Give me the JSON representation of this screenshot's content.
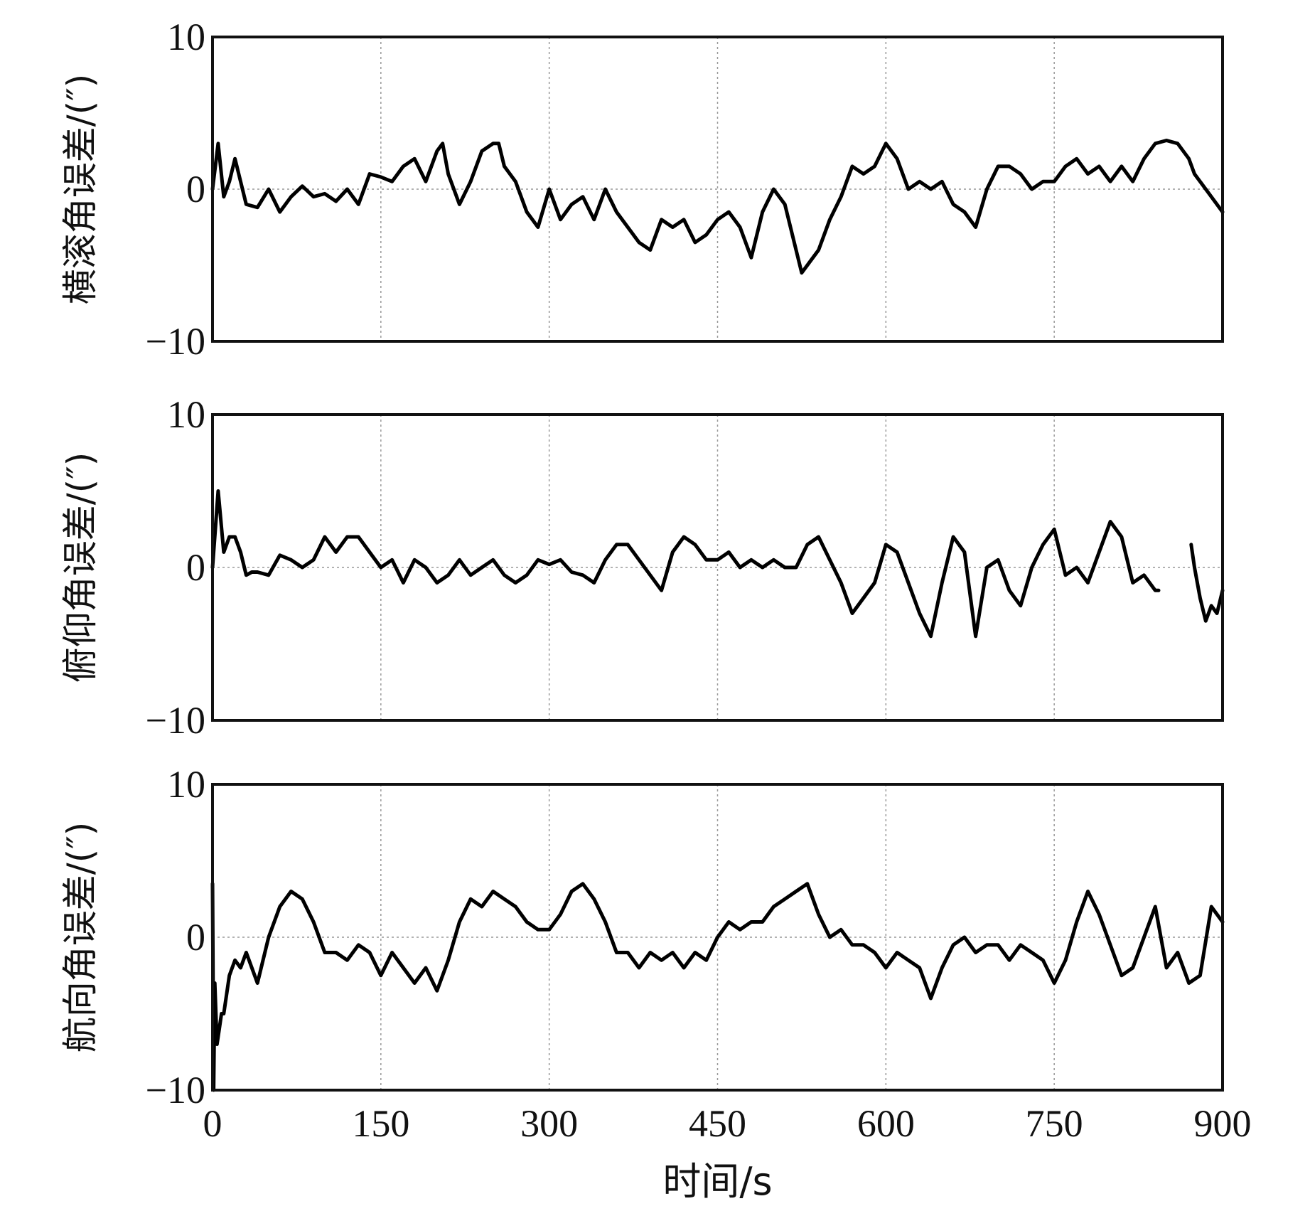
{
  "chart_data": {
    "type": "line",
    "xlabel": "时间/s",
    "xlim": [
      0,
      900
    ],
    "xticks": [
      0,
      150,
      300,
      450,
      600,
      750,
      900
    ],
    "panels": [
      {
        "ylabel": "横滚角误差/(″)",
        "ylim": [
          -10,
          10
        ],
        "yticks": [
          -10,
          0,
          10
        ],
        "grid": true,
        "series": [
          {
            "x": [
              0,
              5,
              10,
              15,
              20,
              25,
              30,
              40,
              50,
              60,
              70,
              80,
              90,
              100,
              110,
              120,
              130,
              140,
              150,
              160,
              170,
              180,
              190,
              200,
              205,
              210,
              220,
              230,
              240,
              250,
              255,
              260,
              270,
              280,
              290,
              300,
              310,
              320,
              330,
              340,
              350,
              360,
              370,
              380,
              390,
              400,
              410,
              420,
              430,
              440,
              450,
              460,
              470,
              480,
              490,
              500,
              510,
              520,
              525,
              530,
              540,
              550,
              560,
              570,
              580,
              590,
              600,
              610,
              620,
              630,
              640,
              650,
              660,
              670,
              680,
              690,
              700,
              710,
              720,
              730,
              740,
              750,
              760,
              770,
              780,
              790,
              800,
              810,
              820,
              830,
              840,
              850,
              860,
              870,
              875,
              880,
              890,
              900
            ],
            "y": [
              0,
              3,
              -0.5,
              0.5,
              2,
              0.5,
              -1,
              -1.2,
              0,
              -1.5,
              -0.5,
              0.2,
              -0.5,
              -0.3,
              -0.8,
              0,
              -1,
              1,
              0.8,
              0.5,
              1.5,
              2,
              0.5,
              2.5,
              3,
              1,
              -1,
              0.5,
              2.5,
              3,
              3,
              1.5,
              0.5,
              -1.5,
              -2.5,
              0,
              -2,
              -1,
              -0.5,
              -2,
              0,
              -1.5,
              -2.5,
              -3.5,
              -4,
              -2,
              -2.5,
              -2,
              -3.5,
              -3,
              -2,
              -1.5,
              -2.5,
              -4.5,
              -1.5,
              0,
              -1,
              -4,
              -5.5,
              -5,
              -4,
              -2,
              -0.5,
              1.5,
              1,
              1.5,
              3,
              2,
              0,
              0.5,
              0,
              0.5,
              -1,
              -1.5,
              -2.5,
              0,
              1.5,
              1.5,
              1,
              0,
              0.5,
              0.5,
              1.5,
              2,
              1,
              1.5,
              0.5,
              1.5,
              0.5,
              2,
              3,
              3.2,
              3,
              2,
              1,
              0.5,
              -0.5,
              -1.5
            ]
          }
        ]
      },
      {
        "ylabel": "俯仰角误差/(″)",
        "ylim": [
          -10,
          10
        ],
        "yticks": [
          -10,
          0,
          10
        ],
        "grid": true,
        "series": [
          {
            "x": [
              0,
              5,
              10,
              15,
              20,
              25,
              30,
              35,
              40,
              50,
              60,
              70,
              80,
              90,
              100,
              110,
              120,
              130,
              140,
              150,
              160,
              170,
              180,
              190,
              200,
              210,
              220,
              230,
              240,
              250,
              260,
              270,
              280,
              290,
              300,
              310,
              320,
              330,
              340,
              350,
              360,
              370,
              380,
              390,
              400,
              410,
              420,
              430,
              440,
              450,
              460,
              470,
              480,
              490,
              500,
              510,
              520,
              530,
              540,
              550,
              560,
              570,
              580,
              590,
              600,
              610,
              620,
              630,
              640,
              650,
              660,
              670,
              680,
              690,
              700,
              710,
              720,
              730,
              740,
              750,
              760,
              770,
              780,
              790,
              800,
              810,
              820,
              830,
              840,
              843
            ],
            "y": [
              0,
              5,
              1,
              2,
              2,
              1,
              -0.5,
              -0.3,
              -0.3,
              -0.5,
              0.8,
              0.5,
              0,
              0.5,
              2,
              1,
              2,
              2,
              1,
              0,
              0.5,
              -1,
              0.5,
              0,
              -1,
              -0.5,
              0.5,
              -0.5,
              0,
              0.5,
              -0.5,
              -1,
              -0.5,
              0.5,
              0.2,
              0.5,
              -0.3,
              -0.5,
              -1,
              0.5,
              1.5,
              1.5,
              0.5,
              -0.5,
              -1.5,
              1,
              2,
              1.5,
              0.5,
              0.5,
              1,
              0,
              0.5,
              0,
              0.5,
              0,
              0,
              1.5,
              2,
              0.5,
              -1,
              -3,
              -2,
              -1,
              1.5,
              1,
              -1,
              -3,
              -4.5,
              -1,
              2,
              1,
              -4.5,
              0,
              0.5,
              -1.5,
              -2.5,
              0,
              1.5,
              2.5,
              -0.5,
              0,
              -1,
              1,
              3,
              2,
              -1,
              -0.5,
              -1.5,
              -1.5
            ]
          },
          {
            "x": [
              872,
              875,
              880,
              885,
              890,
              895,
              900
            ],
            "y": [
              1.5,
              0,
              -2,
              -3.5,
              -2.5,
              -3,
              -1.5
            ]
          }
        ]
      },
      {
        "ylabel": "航向角误差/(″)",
        "ylim": [
          -10,
          10
        ],
        "yticks": [
          -10,
          0,
          10
        ],
        "grid": true,
        "series": [
          {
            "x": [
              0,
              1,
              2,
              4,
              6,
              8,
              10,
              15,
              20,
              25,
              30,
              35,
              40,
              50,
              60,
              70,
              80,
              90,
              100,
              110,
              120,
              130,
              140,
              150,
              160,
              170,
              180,
              190,
              200,
              210,
              220,
              230,
              240,
              250,
              260,
              270,
              280,
              290,
              300,
              310,
              320,
              330,
              340,
              350,
              360,
              370,
              380,
              390,
              400,
              410,
              420,
              430,
              440,
              450,
              460,
              470,
              480,
              490,
              500,
              510,
              520,
              530,
              540,
              550,
              560,
              570,
              580,
              590,
              600,
              610,
              620,
              630,
              640,
              650,
              660,
              670,
              680,
              690,
              700,
              710,
              720,
              730,
              740,
              750,
              760,
              770,
              780,
              790,
              800,
              810,
              820,
              830,
              840,
              850,
              860,
              870,
              880,
              890,
              900
            ],
            "y": [
              3.5,
              -10,
              -3,
              -7,
              -6,
              -5,
              -5,
              -2.5,
              -1.5,
              -2,
              -1,
              -2,
              -3,
              0,
              2,
              3,
              2.5,
              1,
              -1,
              -1,
              -1.5,
              -0.5,
              -1,
              -2.5,
              -1,
              -2,
              -3,
              -2,
              -3.5,
              -1.5,
              1,
              2.5,
              2,
              3,
              2.5,
              2,
              1,
              0.5,
              0.5,
              1.5,
              3,
              3.5,
              2.5,
              1,
              -1,
              -1,
              -2,
              -1,
              -1.5,
              -1,
              -2,
              -1,
              -1.5,
              0,
              1,
              0.5,
              1,
              1,
              2,
              2.5,
              3,
              3.5,
              1.5,
              0,
              0.5,
              -0.5,
              -0.5,
              -1,
              -2,
              -1,
              -1.5,
              -2,
              -4,
              -2,
              -0.5,
              0,
              -1,
              -0.5,
              -0.5,
              -1.5,
              -0.5,
              -1,
              -1.5,
              -3,
              -1.5,
              1,
              3,
              1.5,
              -0.5,
              -2.5,
              -2,
              0,
              2,
              -2,
              -1,
              -3,
              -2.5,
              2,
              1
            ]
          }
        ]
      }
    ]
  }
}
